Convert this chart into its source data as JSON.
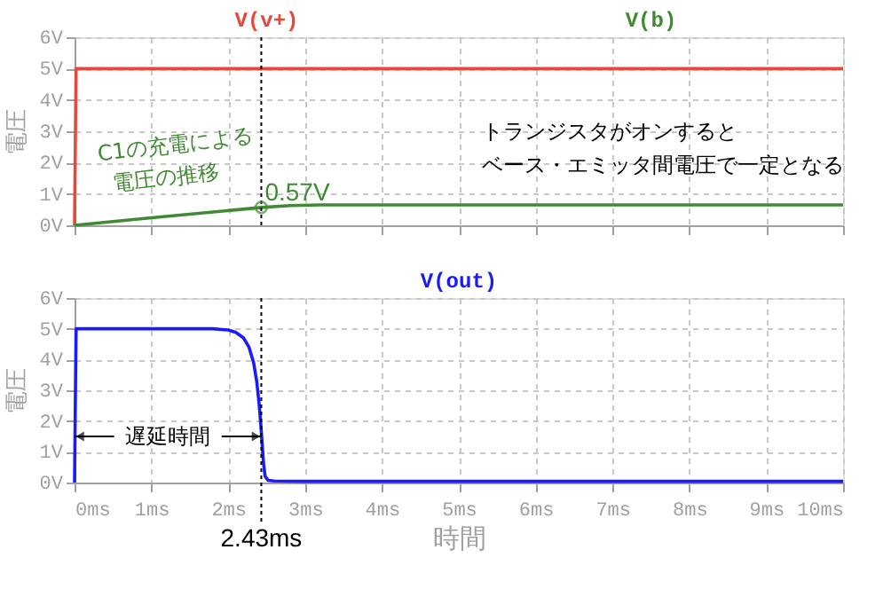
{
  "chart_data": [
    {
      "type": "line",
      "ylabel": "電圧",
      "tick_labels": "y",
      "grid": true,
      "line_style": "solid",
      "marker": "none",
      "xlim": [
        0,
        10
      ],
      "xticks": [
        0,
        1,
        2,
        3,
        4,
        5,
        6,
        7,
        8,
        9,
        10
      ],
      "ylim": [
        0,
        6
      ],
      "yticks": [
        {
          "value": 0,
          "label": "0V"
        },
        {
          "value": 1,
          "label": "1V"
        },
        {
          "value": 2,
          "label": "2V"
        },
        {
          "value": 3,
          "label": "3V"
        },
        {
          "value": 4,
          "label": "4V"
        },
        {
          "value": 5,
          "label": "5V"
        },
        {
          "value": 6,
          "label": "6V"
        }
      ],
      "series": [
        {
          "name": "V(v+)",
          "color": "#e8473c",
          "x": [
            0,
            0.02,
            10
          ],
          "values": [
            0,
            5,
            5
          ]
        },
        {
          "name": "V(b)",
          "color": "#3f8a32",
          "x": [
            0,
            1.0,
            2.0,
            2.43,
            2.8,
            3.2,
            10
          ],
          "values": [
            0,
            0.24,
            0.47,
            0.57,
            0.63,
            0.65,
            0.65
          ]
        }
      ],
      "ref_lines": [
        {
          "axis": "x",
          "value": 2.43,
          "line_style": "dotted",
          "color": "#000000"
        }
      ],
      "annotations": [
        "C1の充電による",
        "電圧の推移",
        {
          "text": "0.57V",
          "x": 2.43,
          "y": 0.57
        },
        "トランジスタがオンすると",
        "ベース・エミッタ間電圧で一定となる"
      ]
    },
    {
      "type": "line",
      "ylabel": "電圧",
      "xlabel": "時間",
      "grid": true,
      "line_style": "solid",
      "marker": "none",
      "xlim": [
        0,
        10
      ],
      "xticks": [
        {
          "value": 0,
          "label": "0ms"
        },
        {
          "value": 1,
          "label": "1ms"
        },
        {
          "value": 2,
          "label": "2ms"
        },
        {
          "value": 3,
          "label": "3ms"
        },
        {
          "value": 4,
          "label": "4ms"
        },
        {
          "value": 5,
          "label": "5ms"
        },
        {
          "value": 6,
          "label": "6ms"
        },
        {
          "value": 7,
          "label": "7ms"
        },
        {
          "value": 8,
          "label": "8ms"
        },
        {
          "value": 9,
          "label": "9ms"
        },
        {
          "value": 10,
          "label": "10ms"
        }
      ],
      "ylim": [
        0,
        6
      ],
      "yticks": [
        {
          "value": 0,
          "label": "0V"
        },
        {
          "value": 1,
          "label": "1V"
        },
        {
          "value": 2,
          "label": "2V"
        },
        {
          "value": 3,
          "label": "3V"
        },
        {
          "value": 4,
          "label": "4V"
        },
        {
          "value": 5,
          "label": "5V"
        },
        {
          "value": 6,
          "label": "6V"
        }
      ],
      "series": [
        {
          "name": "V(out)",
          "color": "#1a1aff",
          "x": [
            0,
            0.02,
            1.0,
            1.8,
            2.0,
            2.1,
            2.2,
            2.27,
            2.33,
            2.37,
            2.4,
            2.42,
            2.44,
            2.46,
            2.48,
            2.52,
            2.6,
            3.0,
            10
          ],
          "values": [
            0,
            5,
            5,
            5,
            4.96,
            4.88,
            4.7,
            4.4,
            3.9,
            3.3,
            2.6,
            2.0,
            1.3,
            0.6,
            0.2,
            0.07,
            0.05,
            0.04,
            0.04
          ]
        }
      ],
      "ref_lines": [
        {
          "axis": "x",
          "value": 2.43,
          "label": "2.43ms",
          "line_style": "dotted",
          "color": "#000000"
        }
      ],
      "annotations": [
        {
          "text": "遅延時間",
          "x": 2.43,
          "y": 1.5
        }
      ]
    }
  ]
}
